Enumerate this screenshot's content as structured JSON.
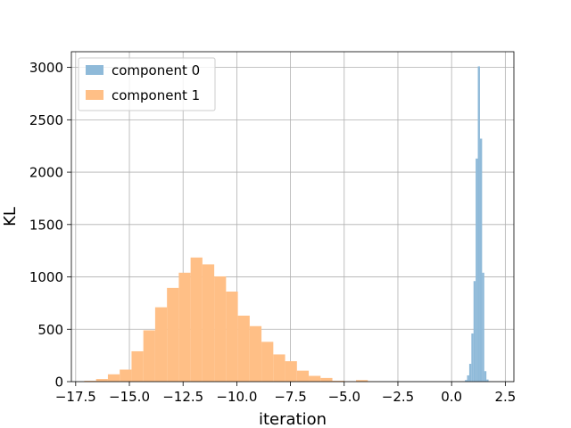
{
  "chart_data": {
    "type": "bar",
    "subtype": "histogram",
    "title": "",
    "xlabel": "iteration",
    "ylabel": "KL",
    "xlim": [
      -17.7,
      2.9
    ],
    "ylim": [
      0,
      3150
    ],
    "xticks": [
      -17.5,
      -15.0,
      -12.5,
      -10.0,
      -7.5,
      -5.0,
      -2.5,
      0.0,
      2.5
    ],
    "xtick_labels": [
      "−17.5",
      "−15.0",
      "−12.5",
      "−10.0",
      "−7.5",
      "−5.0",
      "−2.5",
      "0.0",
      "2.5"
    ],
    "yticks": [
      0,
      500,
      1000,
      1500,
      2000,
      2500,
      3000
    ],
    "ytick_labels": [
      "0",
      "500",
      "1000",
      "1500",
      "2000",
      "2500",
      "3000"
    ],
    "grid": true,
    "legend_position": "top-left",
    "series": [
      {
        "name": "component 0",
        "color": "#8fbad9",
        "bin_edges": [
          0.52,
          0.62,
          0.72,
          0.82,
          0.92,
          1.02,
          1.12,
          1.22,
          1.32,
          1.42,
          1.52,
          1.62,
          1.72,
          1.82,
          1.92
        ],
        "counts": [
          3,
          15,
          60,
          170,
          460,
          960,
          2130,
          3010,
          2320,
          1040,
          100,
          20,
          4,
          1
        ]
      },
      {
        "name": "component 1",
        "color": "#ffbf86",
        "bin_edges": [
          -17.1,
          -16.55,
          -16.0,
          -15.45,
          -14.9,
          -14.35,
          -13.8,
          -13.25,
          -12.7,
          -12.15,
          -11.6,
          -11.05,
          -10.5,
          -9.95,
          -9.4,
          -8.85,
          -8.3,
          -7.75,
          -7.2,
          -6.65,
          -6.1,
          -5.55,
          -5.0,
          -4.45,
          -3.9,
          -3.35
        ],
        "counts": [
          8,
          25,
          70,
          115,
          290,
          490,
          710,
          895,
          1040,
          1185,
          1120,
          1005,
          860,
          630,
          530,
          380,
          260,
          195,
          105,
          55,
          35,
          8,
          4,
          15,
          2
        ]
      }
    ]
  }
}
